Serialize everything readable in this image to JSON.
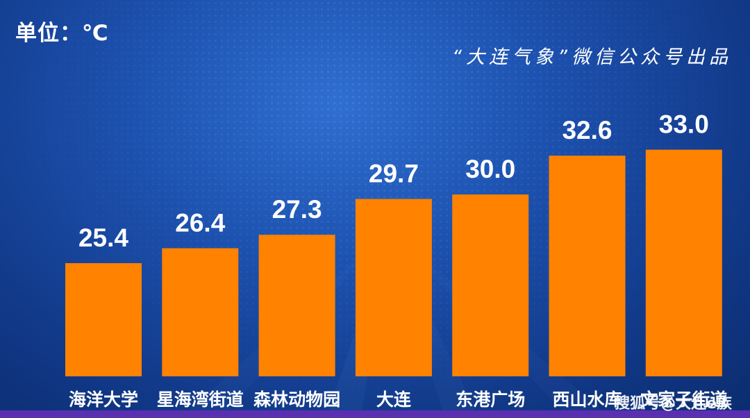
{
  "unit_label": "单位：℃",
  "credit": "“大连气象”微信公众号出品",
  "watermark": "搜狐号@大连e族",
  "colors": {
    "bar": "#ff8200",
    "label": "#ffffff"
  },
  "chart_data": {
    "type": "bar",
    "title": "",
    "xlabel": "",
    "ylabel": "",
    "unit": "℃",
    "categories": [
      "海洋大学",
      "星海湾街道",
      "森林动物园",
      "大连",
      "东港广场",
      "西山水库",
      "文家子街道"
    ],
    "values": [
      25.4,
      26.4,
      27.3,
      29.7,
      30.0,
      32.6,
      33.0
    ],
    "value_labels": [
      "25.4",
      "26.4",
      "27.3",
      "29.7",
      "30.0",
      "32.6",
      "33.0"
    ],
    "grid": false,
    "legend": "none"
  }
}
